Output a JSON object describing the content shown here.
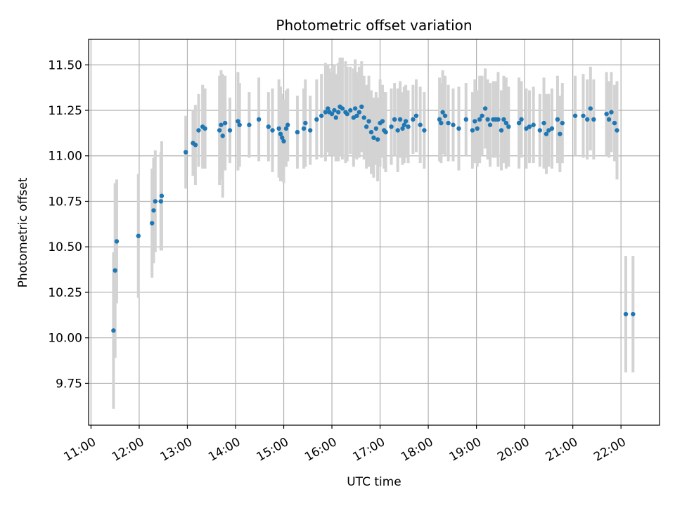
{
  "chart_data": {
    "type": "scatter",
    "title": "Photometric offset variation",
    "xlabel": "UTC time",
    "ylabel": "Photometric offset",
    "x_ticks": [
      "11:00",
      "12:00",
      "13:00",
      "14:00",
      "15:00",
      "16:00",
      "17:00",
      "18:00",
      "19:00",
      "20:00",
      "21:00",
      "22:00"
    ],
    "y_ticks": [
      "9.75",
      "10.00",
      "10.25",
      "10.50",
      "10.75",
      "11.00",
      "11.25",
      "11.50"
    ],
    "xlim": [
      "10:57",
      "22:48"
    ],
    "ylim": [
      9.52,
      11.64
    ],
    "grid": true,
    "colors": {
      "point": "#1f77b4",
      "errorbar": "#d3d3d3",
      "grid": "#b0b0b0"
    },
    "series": [
      {
        "x": [
          "11:28",
          "11:30",
          "11:32",
          "11:59",
          "12:16",
          "12:18",
          "12:20",
          "12:27",
          "12:28",
          "12:58",
          "13:07",
          "13:10",
          "13:14",
          "13:19",
          "13:22",
          "13:40",
          "13:42",
          "13:44",
          "13:47",
          "13:53",
          "14:03",
          "14:05",
          "14:17",
          "14:29",
          "14:41",
          "14:46",
          "14:54",
          "14:56",
          "14:58",
          "15:00",
          "15:03",
          "15:05",
          "15:17",
          "15:25",
          "15:27",
          "15:33",
          "15:41",
          "15:47",
          "15:52",
          "15:55",
          "15:57",
          "16:00",
          "16:03",
          "16:05",
          "16:08",
          "16:10",
          "16:13",
          "16:17",
          "16:19",
          "16:23",
          "16:27",
          "16:29",
          "16:31",
          "16:34",
          "16:37",
          "16:40",
          "16:43",
          "16:46",
          "16:49",
          "16:52",
          "16:55",
          "16:57",
          "17:00",
          "17:03",
          "17:05",
          "17:07",
          "17:14",
          "17:18",
          "17:22",
          "17:25",
          "17:28",
          "17:30",
          "17:32",
          "17:35",
          "17:41",
          "17:45",
          "17:50",
          "17:55",
          "18:14",
          "18:16",
          "18:18",
          "18:21",
          "18:25",
          "18:31",
          "18:38",
          "18:47",
          "18:55",
          "18:58",
          "19:01",
          "19:04",
          "19:07",
          "19:11",
          "19:14",
          "19:17",
          "19:21",
          "19:24",
          "19:27",
          "19:31",
          "19:34",
          "19:37",
          "19:40",
          "19:53",
          "19:56",
          "20:02",
          "20:06",
          "20:11",
          "20:19",
          "20:24",
          "20:27",
          "20:30",
          "20:34",
          "20:41",
          "20:44",
          "20:47",
          "21:03",
          "21:13",
          "21:18",
          "21:22",
          "21:26",
          "21:42",
          "21:45",
          "21:48",
          "21:52",
          "21:55",
          "22:06",
          "22:15"
        ],
        "y": [
          10.04,
          10.37,
          10.53,
          10.56,
          10.63,
          10.7,
          10.75,
          10.75,
          10.78,
          11.02,
          11.07,
          11.06,
          11.14,
          11.16,
          11.15,
          11.14,
          11.17,
          11.11,
          11.18,
          11.14,
          11.19,
          11.17,
          11.17,
          11.2,
          11.16,
          11.14,
          11.15,
          11.12,
          11.1,
          11.08,
          11.15,
          11.17,
          11.13,
          11.15,
          11.18,
          11.14,
          11.2,
          11.22,
          11.24,
          11.26,
          11.24,
          11.23,
          11.25,
          11.21,
          11.24,
          11.27,
          11.26,
          11.24,
          11.23,
          11.25,
          11.21,
          11.26,
          11.22,
          11.24,
          11.27,
          11.21,
          11.16,
          11.19,
          11.13,
          11.1,
          11.15,
          11.09,
          11.18,
          11.19,
          11.14,
          11.13,
          11.16,
          11.2,
          11.14,
          11.2,
          11.15,
          11.17,
          11.19,
          11.16,
          11.2,
          11.22,
          11.17,
          11.14,
          11.2,
          11.18,
          11.24,
          11.22,
          11.18,
          11.17,
          11.15,
          11.2,
          11.14,
          11.19,
          11.15,
          11.2,
          11.22,
          11.26,
          11.2,
          11.17,
          11.2,
          11.2,
          11.2,
          11.14,
          11.2,
          11.18,
          11.16,
          11.18,
          11.2,
          11.15,
          11.16,
          11.17,
          11.14,
          11.18,
          11.12,
          11.14,
          11.15,
          11.2,
          11.12,
          11.18,
          11.22,
          11.22,
          11.2,
          11.26,
          11.2,
          11.23,
          11.2,
          11.24,
          11.18,
          11.14,
          10.13,
          10.13
        ],
        "err": [
          0.43,
          0.48,
          0.34,
          0.34,
          0.3,
          0.29,
          0.28,
          0.27,
          0.3,
          0.2,
          0.18,
          0.22,
          0.2,
          0.23,
          0.22,
          0.3,
          0.3,
          0.34,
          0.26,
          0.18,
          0.27,
          0.23,
          0.18,
          0.23,
          0.19,
          0.23,
          0.27,
          0.26,
          0.24,
          0.23,
          0.21,
          0.2,
          0.2,
          0.22,
          0.24,
          0.19,
          0.22,
          0.23,
          0.27,
          0.24,
          0.24,
          0.23,
          0.25,
          0.24,
          0.27,
          0.27,
          0.28,
          0.28,
          0.26,
          0.24,
          0.27,
          0.27,
          0.24,
          0.25,
          0.25,
          0.23,
          0.23,
          0.25,
          0.23,
          0.22,
          0.2,
          0.23,
          0.24,
          0.2,
          0.21,
          0.22,
          0.21,
          0.2,
          0.23,
          0.21,
          0.2,
          0.21,
          0.2,
          0.2,
          0.19,
          0.2,
          0.21,
          0.21,
          0.23,
          0.22,
          0.23,
          0.22,
          0.21,
          0.2,
          0.23,
          0.2,
          0.21,
          0.23,
          0.21,
          0.24,
          0.22,
          0.22,
          0.22,
          0.23,
          0.21,
          0.21,
          0.26,
          0.22,
          0.24,
          0.25,
          0.22,
          0.25,
          0.21,
          0.22,
          0.2,
          0.21,
          0.2,
          0.25,
          0.22,
          0.2,
          0.22,
          0.24,
          0.21,
          0.22,
          0.22,
          0.23,
          0.22,
          0.23,
          0.22,
          0.23,
          0.21,
          0.22,
          0.21,
          0.27,
          0.32,
          0.32
        ]
      }
    ]
  }
}
